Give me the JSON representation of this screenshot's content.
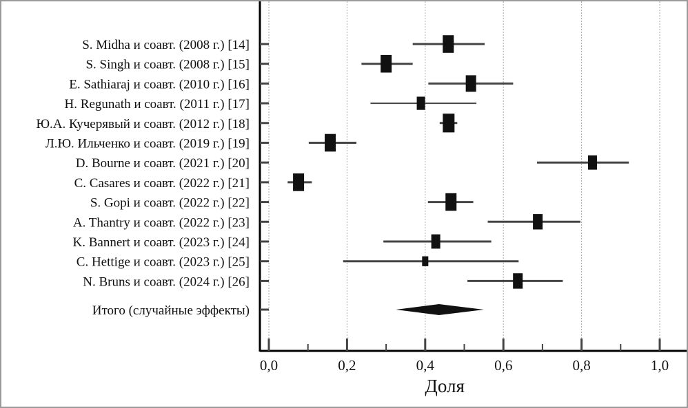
{
  "chart_data": {
    "type": "forest",
    "title": "",
    "xlabel": "Доля",
    "xlim": [
      0,
      1.0
    ],
    "xticks": [
      "0,0",
      "0,2",
      "0,4",
      "0,6",
      "0,8",
      "1,0"
    ],
    "xtick_values": [
      0,
      0.2,
      0.4,
      0.6,
      0.8,
      1.0
    ],
    "grid": "vertical dotted",
    "studies": [
      {
        "label": "S. Midha и соавт. (2008 г.) [14]",
        "estimate": 0.459,
        "lower": 0.368,
        "upper": 0.552,
        "weight": 16
      },
      {
        "label": "S. Singh и соавт. (2008 г.) [15]",
        "estimate": 0.3,
        "lower": 0.237,
        "upper": 0.368,
        "weight": 16
      },
      {
        "label": "E. Sathiaraj и соавт. (2010 г.) [16]",
        "estimate": 0.517,
        "lower": 0.408,
        "upper": 0.625,
        "weight": 15
      },
      {
        "label": "H. Regunath и соавт. (2011 г.) [17]",
        "estimate": 0.389,
        "lower": 0.26,
        "upper": 0.531,
        "weight": 12
      },
      {
        "label": "Ю.А. Кучерявый и соавт. (2012 г.) [18]",
        "estimate": 0.46,
        "lower": 0.437,
        "upper": 0.482,
        "weight": 17
      },
      {
        "label": "Л.Ю. Ильченко и соавт. (2019 г.) [19]",
        "estimate": 0.157,
        "lower": 0.102,
        "upper": 0.224,
        "weight": 16
      },
      {
        "label": "D. Bourne и соавт. (2021 г.) [20]",
        "estimate": 0.828,
        "lower": 0.686,
        "upper": 0.921,
        "weight": 13
      },
      {
        "label": "C. Casares и соавт. (2022 г.) [21]",
        "estimate": 0.076,
        "lower": 0.048,
        "upper": 0.11,
        "weight": 16
      },
      {
        "label": "S. Gopi и соавт. (2022 г.) [22]",
        "estimate": 0.466,
        "lower": 0.407,
        "upper": 0.523,
        "weight": 16
      },
      {
        "label": "A. Thantry и соавт. (2022 г.) [23]",
        "estimate": 0.688,
        "lower": 0.56,
        "upper": 0.797,
        "weight": 14
      },
      {
        "label": "K. Bannert и соавт. (2023 г.) [24]",
        "estimate": 0.427,
        "lower": 0.293,
        "upper": 0.569,
        "weight": 13
      },
      {
        "label": "C. Hettige и соавт. (2023 г.) [25]",
        "estimate": 0.4,
        "lower": 0.19,
        "upper": 0.639,
        "weight": 9
      },
      {
        "label": "N. Bruns и соавт. (2024 г.) [26]",
        "estimate": 0.637,
        "lower": 0.508,
        "upper": 0.752,
        "weight": 14
      }
    ],
    "pooled": {
      "label": "Итого (случайные эффекты)",
      "estimate": 0.435,
      "lower": 0.325,
      "upper": 0.55
    },
    "colors": {
      "marker": "#111111",
      "ci": "#444444",
      "grid": "#aaaaaa",
      "axis": "#000000"
    }
  }
}
